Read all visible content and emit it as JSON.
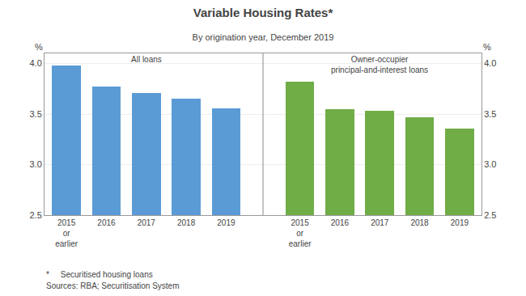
{
  "chart_data": {
    "type": "bar",
    "title": "Variable Housing Rates*",
    "subtitle": "By origination year, December 2019",
    "ylabel": "%",
    "y2label": "%",
    "annotations": [
      "All loans",
      "Owner-occupier\nprincipal-and-interest loans"
    ],
    "footnotes": [
      "*     Securitised housing loans",
      "Sources: RBA; Securitisation System"
    ],
    "categories": [
      "2015\nor\nearlier",
      "2016",
      "2017",
      "2018",
      "2019",
      "2015\nor\nearlier",
      "2016",
      "2017",
      "2018",
      "2019"
    ],
    "values": [
      3.98,
      3.77,
      3.71,
      3.65,
      3.56,
      3.82,
      3.55,
      3.53,
      3.47,
      3.36
    ],
    "colors": [
      "#5B9BD5",
      "#5B9BD5",
      "#5B9BD5",
      "#5B9BD5",
      "#5B9BD5",
      "#70AD47",
      "#70AD47",
      "#70AD47",
      "#70AD47",
      "#70AD47"
    ],
    "ylim": [
      2.5,
      4.1
    ],
    "yticks": [
      2.5,
      {
        "value": 3.0,
        "label": "3.0"
      },
      3.5,
      {
        "value": 4.0,
        "label": "4.0"
      }
    ],
    "y2lim": [
      2.5,
      4.1
    ],
    "y2ticks": [
      2.5,
      {
        "value": 3.0,
        "label": "3.0"
      },
      3.5,
      {
        "value": 4.0,
        "label": "4.0"
      }
    ],
    "grid": true
  }
}
